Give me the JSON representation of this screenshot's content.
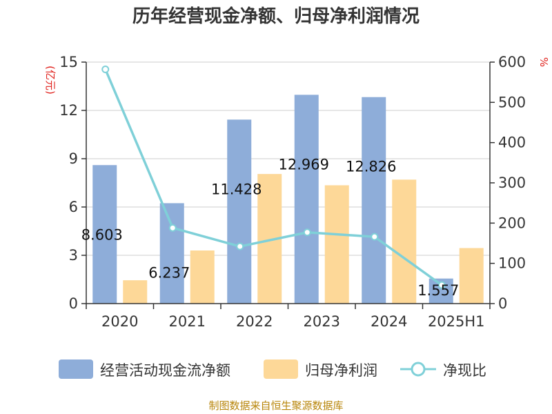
{
  "title": "历年经营现金净额、归母净利润情况",
  "source": "制图数据来自恒生聚源数据库",
  "colors": {
    "cash_flow": "#8eadd9",
    "net_profit": "#fdd898",
    "ratio": "#7fd0d8",
    "axis_unit": "#e0201b",
    "source": "#b8860b"
  },
  "chart_data": {
    "type": "bar",
    "title": "历年经营现金净额、归母净利润情况",
    "categories": [
      "2020",
      "2021",
      "2022",
      "2023",
      "2024",
      "2025H1"
    ],
    "y_left": {
      "unit": "(亿元)",
      "range": [
        0,
        15
      ],
      "ticks": [
        "0",
        "3",
        "6",
        "9",
        "12",
        "15"
      ]
    },
    "y_right": {
      "unit": "%",
      "range": [
        0,
        600
      ],
      "ticks": [
        "0",
        "100",
        "200",
        "300",
        "400",
        "500",
        "600"
      ]
    },
    "grid": true,
    "legend_position": "bottom",
    "series": [
      {
        "name": "经营活动现金流净额",
        "type": "bar",
        "axis": "left",
        "values": [
          8.603,
          6.237,
          11.428,
          12.969,
          12.826,
          1.557
        ],
        "labels": [
          "8.603",
          "6.237",
          "11.428",
          "12.969",
          "12.826",
          "1.557"
        ]
      },
      {
        "name": "归母净利润",
        "type": "bar",
        "axis": "left",
        "values": [
          1.45,
          3.3,
          8.05,
          7.35,
          7.7,
          3.45
        ]
      },
      {
        "name": "净现比",
        "type": "line",
        "axis": "right",
        "values": [
          582,
          188,
          142,
          177,
          166,
          46
        ]
      }
    ]
  }
}
